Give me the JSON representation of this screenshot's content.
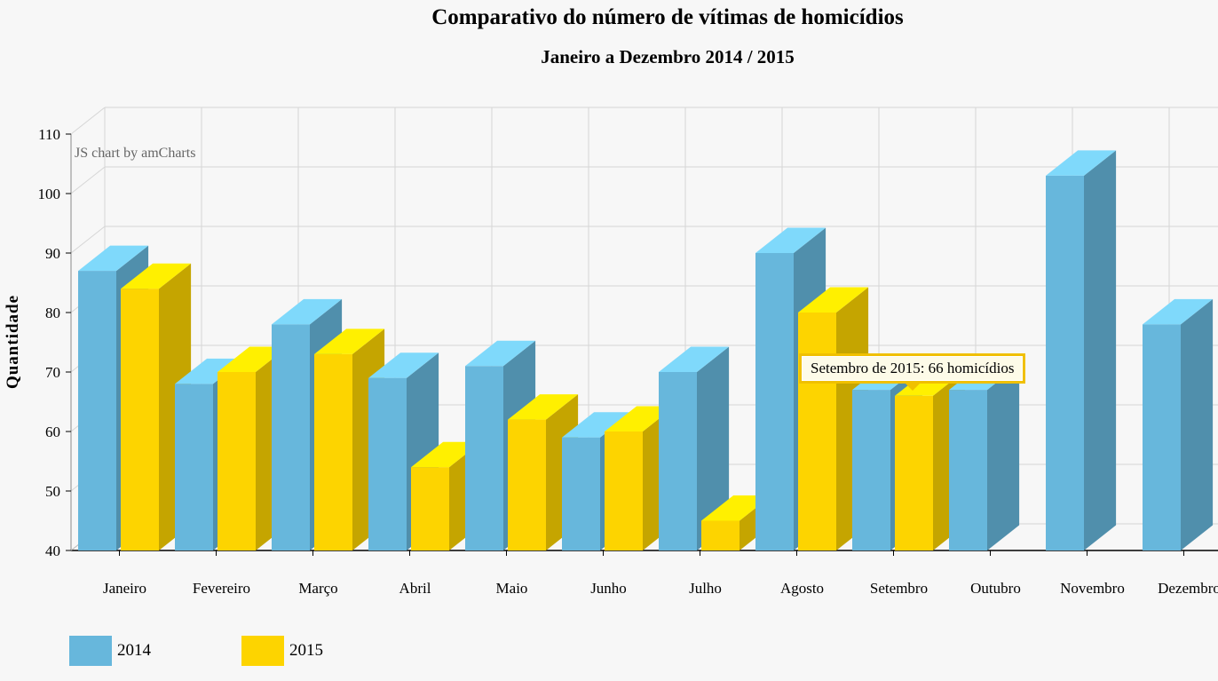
{
  "chart_data": {
    "type": "bar",
    "title": "Comparativo do número de vítimas de homicídios",
    "subtitle": "Janeiro a Dezembro 2014 / 2015",
    "ylabel": "Quantidade",
    "xlabel": "",
    "ylim": [
      40,
      110
    ],
    "yticks": [
      40,
      50,
      60,
      70,
      80,
      90,
      100,
      110
    ],
    "categories": [
      "Janeiro",
      "Fevereiro",
      "Março",
      "Abril",
      "Maio",
      "Junho",
      "Julho",
      "Agosto",
      "Setembro",
      "Outubro",
      "Novembro",
      "Dezembro"
    ],
    "series": [
      {
        "name": "2014",
        "color": "#67b7dc",
        "values": [
          87,
          68,
          78,
          69,
          71,
          59,
          70,
          90,
          67,
          67,
          103,
          78
        ]
      },
      {
        "name": "2015",
        "color": "#fdd400",
        "values": [
          84,
          70,
          73,
          54,
          62,
          60,
          45,
          80,
          66,
          null,
          null,
          null
        ]
      }
    ],
    "tooltip": "Setembro de 2015: 66 homicídios",
    "credit": "JS chart by amCharts",
    "legend_position": "bottom-left"
  }
}
